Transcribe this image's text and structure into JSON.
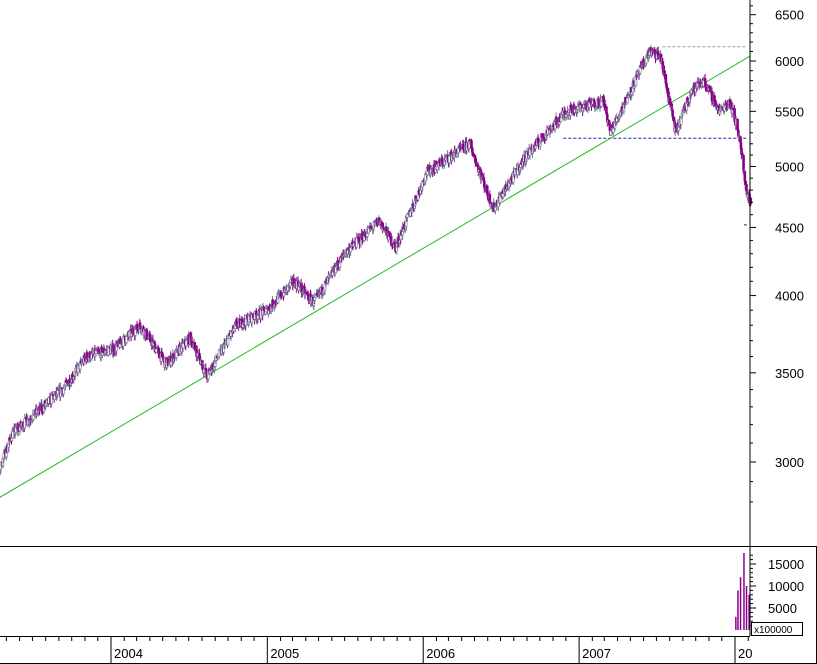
{
  "chart_data": {
    "type": "candlestick",
    "price_axis": {
      "scale": "log",
      "ticks": [
        "6500",
        "6000",
        "5500",
        "5000",
        "4500",
        "4000",
        "3500",
        "3000"
      ],
      "tick_values": [
        6500,
        6000,
        5500,
        5000,
        4500,
        4000,
        3500,
        3000
      ]
    },
    "volume_axis": {
      "ticks": [
        "15000",
        "10000",
        "5000"
      ],
      "tick_values": [
        15000,
        10000,
        5000
      ],
      "unit_label": "x100000"
    },
    "x_axis": {
      "year_labels": [
        "2004",
        "2005",
        "2006",
        "2007",
        "20"
      ]
    },
    "price_anchors": [
      {
        "date": "2003-03-12",
        "value": 2760
      },
      {
        "date": "2003-05-15",
        "value": 3150
      },
      {
        "date": "2003-09-10",
        "value": 3400
      },
      {
        "date": "2003-11-05",
        "value": 3600
      },
      {
        "date": "2004-01-10",
        "value": 3650
      },
      {
        "date": "2004-03-10",
        "value": 3800
      },
      {
        "date": "2004-05-10",
        "value": 3550
      },
      {
        "date": "2004-07-05",
        "value": 3720
      },
      {
        "date": "2004-08-13",
        "value": 3480
      },
      {
        "date": "2004-10-20",
        "value": 3800
      },
      {
        "date": "2004-12-31",
        "value": 3900
      },
      {
        "date": "2005-03-05",
        "value": 4100
      },
      {
        "date": "2005-04-20",
        "value": 3950
      },
      {
        "date": "2005-07-01",
        "value": 4300
      },
      {
        "date": "2005-09-20",
        "value": 4550
      },
      {
        "date": "2005-10-28",
        "value": 4350
      },
      {
        "date": "2006-01-10",
        "value": 4950
      },
      {
        "date": "2006-04-20",
        "value": 5200
      },
      {
        "date": "2006-06-14",
        "value": 4650
      },
      {
        "date": "2006-09-01",
        "value": 5100
      },
      {
        "date": "2006-12-01",
        "value": 5500
      },
      {
        "date": "2007-02-28",
        "value": 5600
      },
      {
        "date": "2007-03-15",
        "value": 5300
      },
      {
        "date": "2007-06-15",
        "value": 6100
      },
      {
        "date": "2007-07-10",
        "value": 6050
      },
      {
        "date": "2007-08-16",
        "value": 5300
      },
      {
        "date": "2007-09-20",
        "value": 5700
      },
      {
        "date": "2007-10-20",
        "value": 5800
      },
      {
        "date": "2007-11-26",
        "value": 5500
      },
      {
        "date": "2007-12-20",
        "value": 5600
      },
      {
        "date": "2008-01-10",
        "value": 5300
      },
      {
        "date": "2008-01-22",
        "value": 4950
      },
      {
        "date": "2008-01-28",
        "value": 4800
      },
      {
        "date": "2008-02-05",
        "value": 4700
      }
    ],
    "trendline": {
      "from": {
        "date": "2003-03-12",
        "value": 2780
      },
      "to": {
        "date": "2008-02-05",
        "value": 6050
      },
      "color": "#22bb22"
    },
    "levels": [
      {
        "value": 6150,
        "color": "#999999",
        "style": "dashed",
        "from_date": "2007-07-15"
      },
      {
        "value": 5250,
        "color": "#2222aa",
        "style": "dashed",
        "from_date": "2006-11-25"
      },
      {
        "value": 4520,
        "color": "#2222aa",
        "style": "dashed",
        "from_date": "2008-01-22"
      }
    ],
    "volume_spikes": [
      {
        "date": "2008-01-03",
        "value": 3000
      },
      {
        "date": "2008-01-08",
        "value": 9000
      },
      {
        "date": "2008-01-14",
        "value": 12000
      },
      {
        "date": "2008-01-22",
        "value": 17500
      },
      {
        "date": "2008-01-28",
        "value": 10000
      },
      {
        "date": "2008-02-03",
        "value": 8000
      }
    ],
    "colors": {
      "up": "#708090",
      "down": "#8b008b",
      "axis": "#000000",
      "background": "#ffffff"
    }
  }
}
